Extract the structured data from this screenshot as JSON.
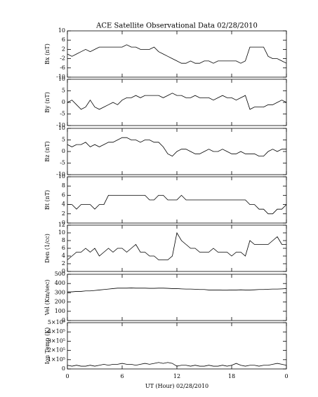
{
  "chart_data": {
    "type": "line",
    "title": "ACE Satellite Observational Data   02/28/2010",
    "xlabel": "UT (Hour)   02/28/2010",
    "x": [
      0,
      0.5,
      1,
      1.5,
      2,
      2.5,
      3,
      3.5,
      4,
      4.5,
      5,
      5.5,
      6,
      6.5,
      7,
      7.5,
      8,
      8.5,
      9,
      9.5,
      10,
      10.5,
      11,
      11.5,
      12,
      12.5,
      13,
      13.5,
      14,
      14.5,
      15,
      15.5,
      16,
      16.5,
      17,
      17.5,
      18,
      18.5,
      19,
      19.5,
      20,
      20.5,
      21,
      21.5,
      22,
      22.5,
      23,
      23.5,
      24
    ],
    "xlim": [
      0,
      24
    ],
    "xticks": [
      0,
      6,
      12,
      18,
      {
        "value": 24,
        "label": "0"
      }
    ],
    "color": "#000000",
    "panels": [
      {
        "ylabel": "Bx (nT)",
        "ylim": [
          -10,
          10
        ],
        "yticks": [
          -10,
          -6,
          -2,
          2,
          6,
          10
        ],
        "values": [
          0,
          -1,
          0,
          1,
          2,
          1,
          2,
          3,
          3,
          3,
          3,
          3,
          3,
          4,
          3,
          3,
          2,
          2,
          2,
          3,
          1,
          0,
          -1,
          -2,
          -3,
          -4,
          -4,
          -3,
          -4,
          -4,
          -3,
          -3,
          -4,
          -3,
          -3,
          -3,
          -3,
          -3,
          -4,
          -3,
          3,
          3,
          3,
          3,
          -1,
          -2,
          -2,
          -3,
          -4
        ]
      },
      {
        "ylabel": "By (nT)",
        "ylim": [
          -10,
          10
        ],
        "yticks": [
          -10,
          -5,
          0,
          5,
          10
        ],
        "values": [
          0,
          1,
          -1,
          -3,
          -2,
          1,
          -2,
          -3,
          -2,
          -1,
          0,
          -1,
          1,
          2,
          2,
          3,
          2,
          3,
          3,
          3,
          3,
          2,
          3,
          4,
          3,
          3,
          2,
          2,
          3,
          2,
          2,
          2,
          1,
          2,
          3,
          2,
          2,
          1,
          2,
          3,
          -3,
          -2,
          -2,
          -2,
          -1,
          -1,
          0,
          1,
          0
        ]
      },
      {
        "ylabel": "Bz (nT)",
        "ylim": [
          -10,
          10
        ],
        "yticks": [
          -10,
          -5,
          0,
          5,
          10
        ],
        "values": [
          3,
          2,
          3,
          3,
          4,
          2,
          3,
          2,
          3,
          4,
          4,
          5,
          6,
          6,
          5,
          5,
          4,
          5,
          5,
          4,
          4,
          2,
          -1,
          -2,
          0,
          1,
          1,
          0,
          -1,
          -1,
          0,
          1,
          0,
          0,
          1,
          0,
          -1,
          -1,
          0,
          -1,
          -1,
          -1,
          -2,
          -2,
          0,
          1,
          0,
          1,
          1
        ]
      },
      {
        "ylabel": "Bt (nT)",
        "ylim": [
          0,
          10
        ],
        "yticks": [
          0,
          2,
          4,
          6,
          8,
          10
        ],
        "values": [
          4,
          4,
          3,
          4,
          4,
          4,
          3,
          4,
          4,
          6,
          6,
          6,
          6,
          6,
          6,
          6,
          6,
          6,
          5,
          5,
          6,
          6,
          5,
          5,
          5,
          6,
          5,
          5,
          5,
          5,
          5,
          5,
          5,
          5,
          5,
          5,
          5,
          5,
          5,
          5,
          4,
          4,
          3,
          3,
          2,
          2,
          3,
          3,
          4
        ]
      },
      {
        "ylabel": "Den (1/cc)",
        "ylim": [
          0,
          12
        ],
        "yticks": [
          0,
          2,
          4,
          6,
          8,
          10,
          12
        ],
        "values": [
          3,
          4,
          5,
          5,
          6,
          5,
          6,
          4,
          5,
          6,
          5,
          6,
          6,
          5,
          6,
          7,
          5,
          5,
          4,
          4,
          3,
          3,
          3,
          4,
          10,
          8,
          7,
          6,
          6,
          5,
          5,
          5,
          6,
          5,
          5,
          5,
          4,
          5,
          5,
          4,
          8,
          7,
          7,
          7,
          7,
          8,
          9,
          7,
          7
        ]
      },
      {
        "ylabel": "Vel (Km/sec)",
        "ylim": [
          0,
          500
        ],
        "yticks": [
          0,
          100,
          200,
          300,
          400,
          500
        ],
        "values": [
          310,
          310,
          315,
          315,
          320,
          320,
          325,
          330,
          335,
          340,
          345,
          350,
          350,
          350,
          352,
          350,
          350,
          350,
          348,
          348,
          350,
          350,
          348,
          345,
          345,
          342,
          340,
          340,
          338,
          335,
          335,
          330,
          330,
          330,
          328,
          328,
          330,
          330,
          332,
          330,
          330,
          332,
          335,
          335,
          338,
          340,
          340,
          342,
          345
        ]
      },
      {
        "ylabel": "Ion Temp (K)",
        "ylim": [
          0,
          500000
        ],
        "yticks": [
          0,
          {
            "value": 100000,
            "label": "1×10⁵"
          },
          {
            "value": 200000,
            "label": "2×10⁵"
          },
          {
            "value": 300000,
            "label": "3×10⁵"
          },
          {
            "value": 400000,
            "label": "4×10⁵"
          },
          {
            "value": 500000,
            "label": "5×10⁵"
          }
        ],
        "values": [
          40000,
          30000,
          40000,
          30000,
          30000,
          40000,
          30000,
          40000,
          50000,
          40000,
          50000,
          50000,
          60000,
          50000,
          50000,
          40000,
          50000,
          60000,
          50000,
          60000,
          70000,
          60000,
          70000,
          60000,
          30000,
          40000,
          40000,
          30000,
          40000,
          30000,
          30000,
          40000,
          30000,
          30000,
          40000,
          30000,
          40000,
          60000,
          40000,
          30000,
          40000,
          40000,
          30000,
          40000,
          40000,
          50000,
          60000,
          50000,
          40000
        ]
      }
    ]
  }
}
